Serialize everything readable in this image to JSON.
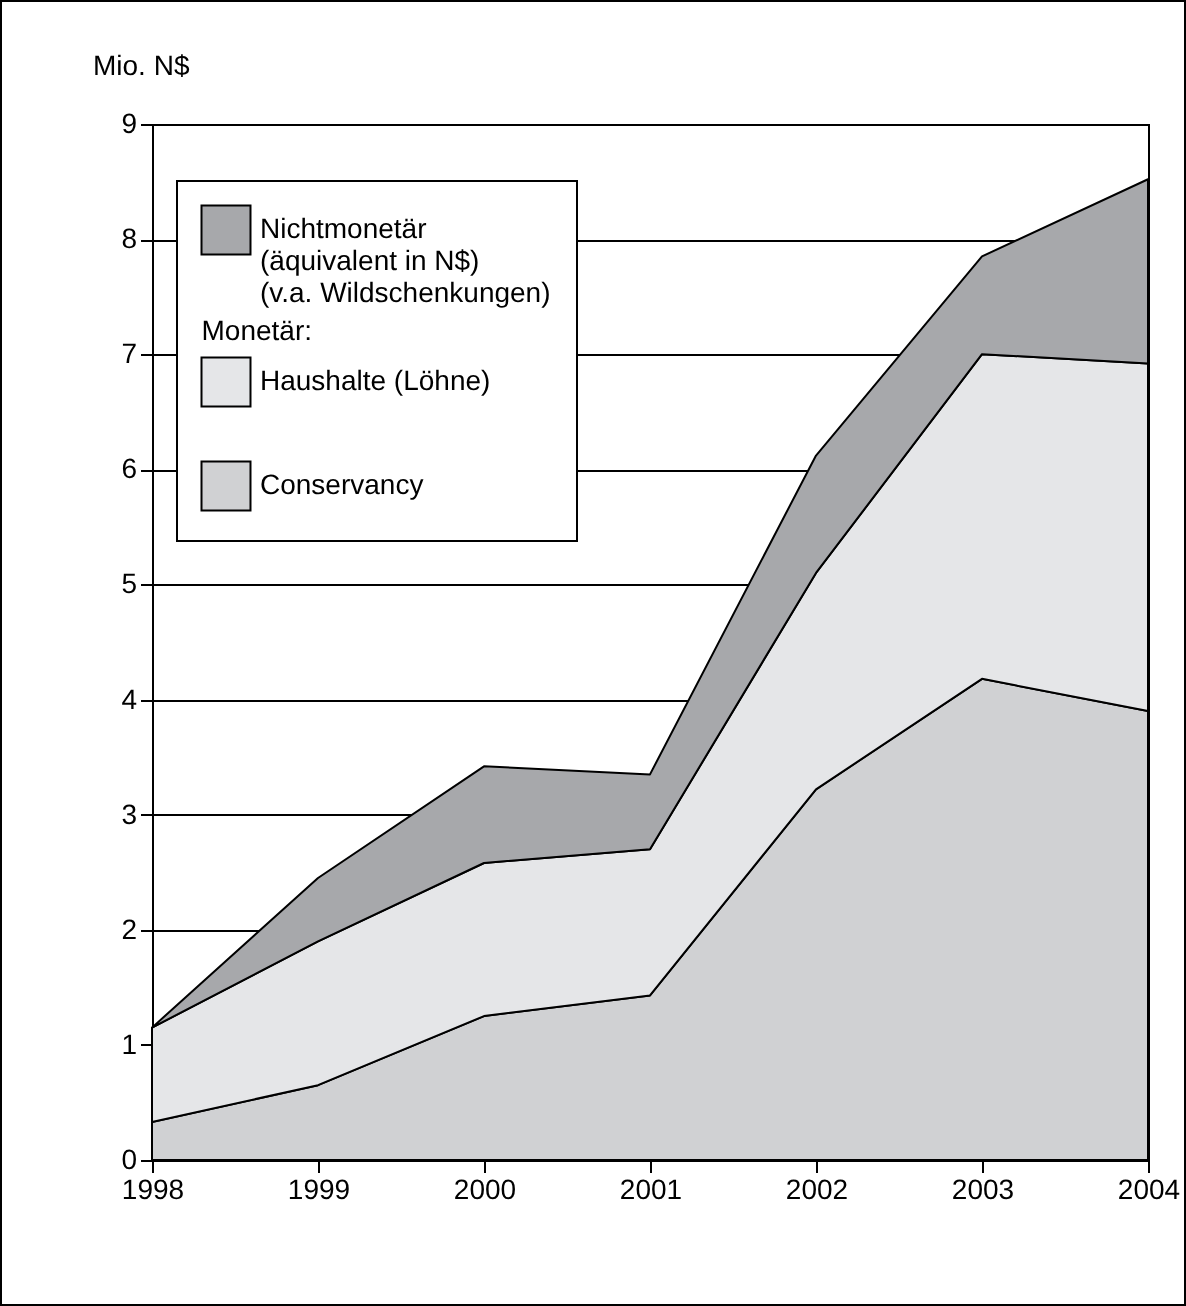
{
  "chart_data": {
    "type": "area",
    "stacked": true,
    "ylabel": "Mio. N$",
    "x": [
      1998,
      1999,
      2000,
      2001,
      2002,
      2003,
      2004
    ],
    "series": [
      {
        "name": "Conservancy",
        "color": "#d0d1d3",
        "values": [
          0.33,
          0.65,
          1.25,
          1.43,
          3.22,
          4.18,
          3.9
        ]
      },
      {
        "name": "Haushalte (Löhne)",
        "color": "#e5e6e8",
        "values": [
          0.82,
          1.25,
          1.33,
          1.27,
          1.88,
          2.82,
          3.02
        ]
      },
      {
        "name": "Nichtmonetär\n(äquivalent in N$)\n(v.a. Wildschenkungen)",
        "color": "#a7a8ab",
        "values": [
          0,
          0.55,
          0.84,
          0.65,
          1.02,
          0.85,
          1.6
        ]
      }
    ],
    "annotations": [
      "Monetär:"
    ],
    "xlim": [
      1998,
      2004
    ],
    "xticks": [
      1998,
      1999,
      2000,
      2001,
      2002,
      2003,
      2004
    ],
    "ylim": [
      0,
      9
    ],
    "yticks": [
      0,
      1,
      2,
      3,
      4,
      5,
      6,
      7,
      8,
      9
    ],
    "grid": "y",
    "legend": "top left"
  }
}
